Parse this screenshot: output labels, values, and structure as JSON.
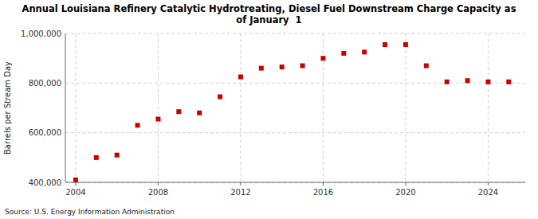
{
  "chart_data": {
    "type": "scatter",
    "title": "Annual Louisiana Refinery Catalytic Hydrotreating, Diesel Fuel Downstream Charge Capacity as\nof January  1",
    "y_label": "Barrels per Stream Day",
    "source": "Source: U.S. Energy Information Administration",
    "x": [
      2004,
      2005,
      2006,
      2007,
      2008,
      2009,
      2010,
      2011,
      2012,
      2013,
      2014,
      2015,
      2016,
      2017,
      2018,
      2019,
      2020,
      2021,
      2022,
      2023,
      2024,
      2025
    ],
    "values": [
      410000,
      500000,
      510000,
      630000,
      655000,
      685000,
      680000,
      745000,
      825000,
      860000,
      865000,
      870000,
      900000,
      920000,
      925000,
      955000,
      955000,
      870000,
      805000,
      810000,
      805000,
      805000
    ],
    "color": "#cc0000",
    "marker": "square",
    "xlim": [
      2003.5,
      2025.8
    ],
    "ylim": [
      400000,
      1000000
    ],
    "xticks": [
      2004,
      2008,
      2012,
      2016,
      2020,
      2024
    ],
    "yticks": [
      {
        "value": 400000,
        "label": "400,000"
      },
      {
        "value": 600000,
        "label": "600,000"
      },
      {
        "value": 800000,
        "label": "800,000"
      },
      {
        "value": 1000000,
        "label": "1,000,000"
      }
    ],
    "grid": true
  }
}
